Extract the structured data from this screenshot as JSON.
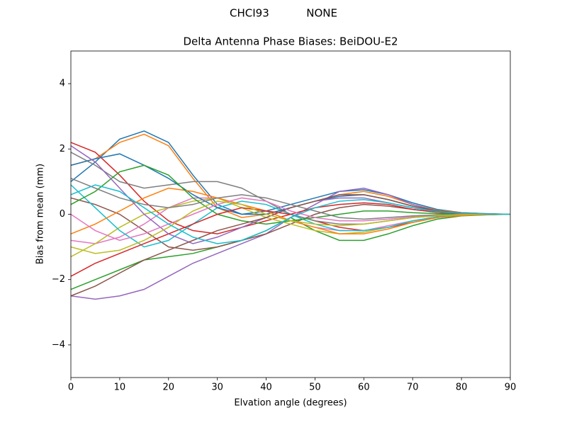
{
  "chart_data": {
    "type": "line",
    "suptitle": "CHCI93           NONE",
    "title": "Delta Antenna Phase Biases: BeiDOU-E2",
    "x_label": "Elvation angle (degrees)",
    "y_label": "Bias from mean (mm)",
    "x": [
      0,
      5,
      10,
      15,
      20,
      25,
      30,
      35,
      40,
      45,
      50,
      55,
      60,
      65,
      70,
      75,
      80,
      85,
      90
    ],
    "xlim": [
      0,
      90
    ],
    "xticks": [
      0,
      10,
      20,
      30,
      40,
      50,
      60,
      70,
      80,
      90
    ],
    "ylim": [
      -5,
      5
    ],
    "yticks": [
      {
        "value": -4,
        "label": "−4"
      },
      {
        "value": -2,
        "label": "−2"
      },
      0,
      2,
      4
    ],
    "grid": false,
    "series": [
      {
        "color": "#1f77b4",
        "values": [
          1.0,
          1.6,
          2.3,
          2.55,
          2.2,
          1.2,
          0.3,
          0.0,
          0.1,
          0.3,
          0.5,
          0.7,
          0.75,
          0.6,
          0.35,
          0.15,
          0.05,
          0.02,
          0
        ]
      },
      {
        "color": "#ff7f0e",
        "values": [
          1.5,
          1.7,
          2.2,
          2.45,
          2.1,
          1.1,
          0.2,
          -0.1,
          0.0,
          0.2,
          0.4,
          0.6,
          0.7,
          0.55,
          0.3,
          0.12,
          0.05,
          0.02,
          0
        ]
      },
      {
        "color": "#2ca02c",
        "values": [
          -2.3,
          -2.0,
          -1.7,
          -1.4,
          -1.3,
          -1.2,
          -1.0,
          -0.8,
          -0.5,
          -0.1,
          -0.5,
          -0.8,
          -0.8,
          -0.6,
          -0.35,
          -0.15,
          -0.05,
          -0.02,
          0
        ]
      },
      {
        "color": "#d62728",
        "values": [
          2.2,
          1.9,
          1.2,
          0.4,
          -0.2,
          -0.5,
          -0.6,
          -0.4,
          -0.2,
          0.0,
          -0.2,
          -0.4,
          -0.5,
          -0.4,
          -0.25,
          -0.1,
          -0.03,
          -0.01,
          0
        ]
      },
      {
        "color": "#9467bd",
        "values": [
          -2.5,
          -2.6,
          -2.5,
          -2.3,
          -1.9,
          -1.5,
          -1.2,
          -0.9,
          -0.6,
          -0.1,
          0.3,
          0.7,
          0.8,
          0.6,
          0.3,
          0.1,
          0.03,
          0.01,
          0
        ]
      },
      {
        "color": "#8c564b",
        "values": [
          0.5,
          0.3,
          0.0,
          -0.5,
          -1.0,
          -1.1,
          -1.0,
          -0.8,
          -0.6,
          -0.3,
          0.0,
          0.2,
          0.3,
          0.25,
          0.15,
          0.06,
          0.02,
          0.01,
          0
        ]
      },
      {
        "color": "#e377c2",
        "values": [
          -0.8,
          -0.9,
          -0.7,
          -0.3,
          0.2,
          0.5,
          0.5,
          0.3,
          0.1,
          -0.2,
          -0.4,
          -0.5,
          -0.5,
          -0.35,
          -0.2,
          -0.08,
          -0.03,
          -0.01,
          0
        ]
      },
      {
        "color": "#7f7f7f",
        "values": [
          1.9,
          1.5,
          1.0,
          0.8,
          0.9,
          1.0,
          1.0,
          0.8,
          0.4,
          0.0,
          -0.2,
          -0.3,
          -0.3,
          -0.2,
          -0.1,
          -0.05,
          -0.02,
          0.0,
          0
        ]
      },
      {
        "color": "#bcbd22",
        "values": [
          -1.3,
          -0.9,
          -0.4,
          0.0,
          0.2,
          0.4,
          0.5,
          0.2,
          -0.1,
          -0.3,
          -0.5,
          -0.6,
          -0.55,
          -0.4,
          -0.2,
          -0.08,
          -0.03,
          -0.01,
          0
        ]
      },
      {
        "color": "#17becf",
        "values": [
          0.9,
          0.2,
          -0.5,
          -1.0,
          -0.8,
          -0.3,
          0.2,
          0.4,
          0.3,
          0.0,
          -0.3,
          -0.5,
          -0.5,
          -0.4,
          -0.2,
          -0.08,
          -0.03,
          -0.01,
          0
        ]
      },
      {
        "color": "#1f77b4",
        "values": [
          1.5,
          1.7,
          1.85,
          1.5,
          1.1,
          0.6,
          0.2,
          0.0,
          0.0,
          0.2,
          0.4,
          0.55,
          0.6,
          0.45,
          0.25,
          0.1,
          0.04,
          0.01,
          0
        ]
      },
      {
        "color": "#ff7f0e",
        "values": [
          -0.6,
          -0.3,
          0.1,
          0.5,
          0.8,
          0.7,
          0.5,
          0.3,
          0.1,
          -0.2,
          -0.4,
          -0.6,
          -0.6,
          -0.45,
          -0.25,
          -0.1,
          -0.04,
          -0.01,
          0
        ]
      },
      {
        "color": "#2ca02c",
        "values": [
          0.3,
          0.7,
          1.3,
          1.5,
          1.2,
          0.5,
          0.0,
          -0.2,
          -0.3,
          -0.2,
          -0.1,
          0.0,
          0.1,
          0.1,
          0.05,
          0.02,
          0.01,
          0.0,
          0
        ]
      },
      {
        "color": "#d62728",
        "values": [
          -1.9,
          -1.5,
          -1.2,
          -0.9,
          -0.6,
          -0.3,
          0.0,
          0.2,
          0.1,
          0.0,
          0.2,
          0.3,
          0.35,
          0.3,
          0.15,
          0.06,
          0.02,
          0.01,
          0
        ]
      },
      {
        "color": "#9467bd",
        "values": [
          2.1,
          1.6,
          0.8,
          0.0,
          -0.6,
          -0.9,
          -0.7,
          -0.4,
          -0.1,
          0.2,
          0.4,
          0.5,
          0.5,
          0.35,
          0.2,
          0.08,
          0.03,
          0.01,
          0
        ]
      },
      {
        "color": "#8c564b",
        "values": [
          -2.5,
          -2.2,
          -1.8,
          -1.4,
          -1.1,
          -0.8,
          -0.5,
          -0.3,
          -0.1,
          0.2,
          0.4,
          0.6,
          0.6,
          0.45,
          0.25,
          0.1,
          0.04,
          0.01,
          0
        ]
      },
      {
        "color": "#e377c2",
        "values": [
          0.0,
          -0.5,
          -0.8,
          -0.6,
          -0.3,
          0.0,
          0.3,
          0.5,
          0.4,
          0.1,
          -0.1,
          -0.2,
          -0.2,
          -0.15,
          -0.08,
          -0.03,
          -0.01,
          0.0,
          0
        ]
      },
      {
        "color": "#7f7f7f",
        "values": [
          1.1,
          0.8,
          0.5,
          0.3,
          0.2,
          0.3,
          0.5,
          0.6,
          0.5,
          0.3,
          0.1,
          -0.1,
          -0.15,
          -0.1,
          -0.05,
          -0.02,
          -0.01,
          0.0,
          0
        ]
      },
      {
        "color": "#bcbd22",
        "values": [
          -1.0,
          -1.2,
          -1.1,
          -0.8,
          -0.4,
          0.1,
          0.4,
          0.3,
          0.0,
          -0.2,
          -0.3,
          -0.35,
          -0.3,
          -0.2,
          -0.1,
          -0.04,
          -0.01,
          0.0,
          0
        ]
      },
      {
        "color": "#17becf",
        "values": [
          0.6,
          0.9,
          0.7,
          0.2,
          -0.3,
          -0.7,
          -0.9,
          -0.8,
          -0.5,
          -0.1,
          0.2,
          0.4,
          0.45,
          0.35,
          0.2,
          0.08,
          0.03,
          0.01,
          0
        ]
      }
    ]
  }
}
